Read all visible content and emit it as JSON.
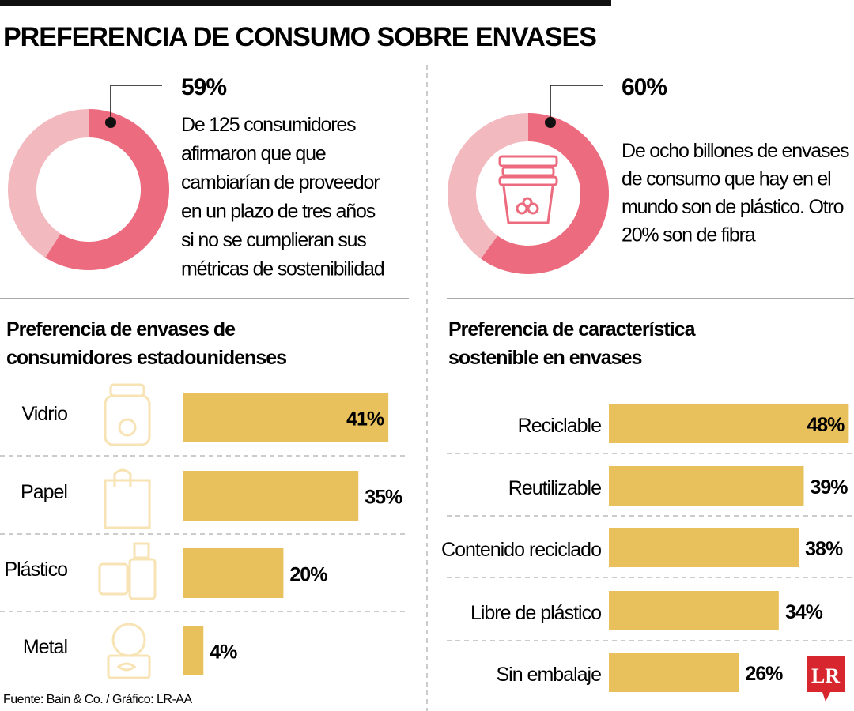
{
  "title": "PREFERENCIA DE CONSUMO SOBRE ENVASES",
  "colors": {
    "donut_main": "#ec6b7f",
    "donut_rest": "#f2b9bf",
    "bar": "#e9c15c",
    "icon": "#f7e3b4",
    "logo": "#d7262e"
  },
  "stats": [
    {
      "value": "59%",
      "percent": 59,
      "lines": [
        "De 125 consumidores",
        "afirmaron que que",
        "cambiarían de proveedor",
        "en un plazo de tres años",
        "si no se cumplieran sus",
        "métricas de sostenibilidad"
      ]
    },
    {
      "value": "60%",
      "percent": 60,
      "icon": "packaging-containers-icon",
      "lines": [
        "De ocho billones de envases",
        "de consumo que hay en el",
        "mundo son de plástico. Otro",
        "20% son de fibra"
      ]
    }
  ],
  "chart_data": [
    {
      "type": "pie",
      "values": [
        59,
        41
      ],
      "label": "59%"
    },
    {
      "type": "pie",
      "values": [
        60,
        40
      ],
      "label": "60%"
    },
    {
      "type": "bar",
      "orientation": "horizontal",
      "title_lines": [
        "Preferencia de envases de",
        "consumidores estadounidenses"
      ],
      "categories": [
        "Vidrio",
        "Papel",
        "Plástico",
        "Metal"
      ],
      "values": [
        41,
        35,
        20,
        4
      ],
      "labels": [
        "41%",
        "35%",
        "20%",
        "4%"
      ],
      "icons": [
        "glass-jar-icon",
        "paper-bag-icon",
        "plastic-bottles-icon",
        "metal-can-icon"
      ]
    },
    {
      "type": "bar",
      "orientation": "horizontal",
      "title_lines": [
        "Preferencia de característica",
        "sostenible en envases"
      ],
      "categories": [
        "Reciclable",
        "Reutilizable",
        "Contenido reciclado",
        "Libre de plástico",
        "Sin embalaje"
      ],
      "values": [
        48,
        39,
        38,
        34,
        26
      ],
      "labels": [
        "48%",
        "39%",
        "38%",
        "34%",
        "26%"
      ]
    }
  ],
  "footer": "Fuente: Bain & Co. / Gráfico: LR-AA",
  "logo": "LR"
}
